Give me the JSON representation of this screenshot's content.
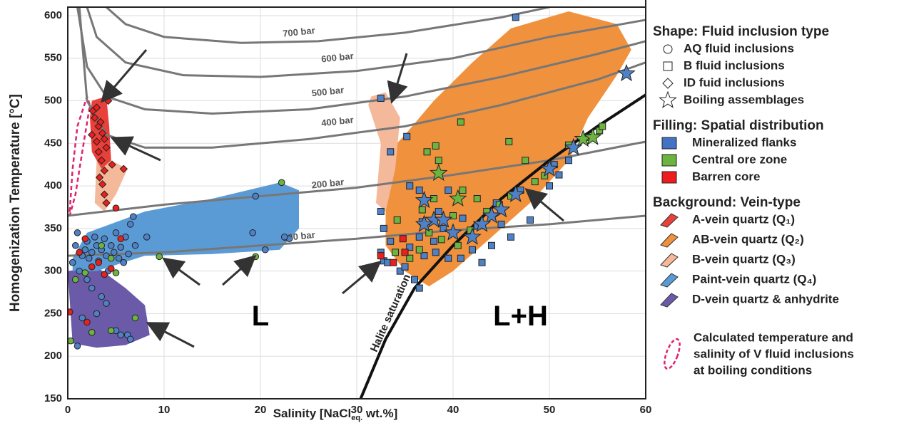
{
  "chart_data": {
    "type": "scatter",
    "x_label": "Salinity [NaCl",
    "x_label_sub": "eq.",
    "x_label_end": " wt.%]",
    "y_label": "Homogenization Temperature [°C]",
    "xlim": [
      0,
      60
    ],
    "ylim": [
      150,
      610
    ],
    "xticks": [
      0,
      10,
      20,
      30,
      40,
      50,
      60
    ],
    "yticks": [
      150,
      200,
      250,
      300,
      350,
      400,
      450,
      500,
      550,
      600
    ],
    "grid": true,
    "regions": [
      {
        "color": "#6a5aa8",
        "x": [
          0,
          3,
          6,
          8,
          8.5,
          6,
          3,
          0.5
        ],
        "y": [
          300,
          305,
          280,
          260,
          225,
          213,
          210,
          215
        ]
      },
      {
        "color": "#5b9bd5",
        "x": [
          0.5,
          2,
          8,
          15,
          22,
          24,
          24,
          22,
          15,
          8,
          3,
          0.5
        ],
        "y": [
          315,
          345,
          370,
          385,
          404,
          395,
          350,
          325,
          320,
          318,
          300,
          300
        ]
      },
      {
        "color": "#f0913e",
        "x": [
          33,
          32.5,
          35,
          38,
          42,
          46,
          52,
          57,
          58.5,
          57,
          54,
          52,
          48,
          44,
          40,
          37.5,
          35,
          33
        ],
        "y": [
          370,
          430,
          460,
          500,
          545,
          585,
          605,
          590,
          560,
          530,
          480,
          430,
          380,
          340,
          300,
          282,
          300,
          330
        ]
      },
      {
        "color": "#f4b99a",
        "x": [
          2.8,
          4,
          4.5,
          6.2,
          5,
          3.8,
          2.8,
          3
        ],
        "y": [
          470,
          470,
          430,
          420,
          390,
          370,
          380,
          430
        ]
      },
      {
        "color": "#f4b99a",
        "x": [
          31.5,
          33,
          34.5,
          34,
          33,
          32,
          32.5,
          31.2
        ],
        "y": [
          505,
          510,
          480,
          420,
          370,
          380,
          450,
          495
        ]
      },
      {
        "color": "#e8403a",
        "x": [
          2.5,
          4,
          4.3,
          4.5,
          3.5,
          2.5,
          2.3
        ],
        "y": [
          500,
          505,
          470,
          430,
          420,
          440,
          480
        ]
      }
    ],
    "boiling_region": {
      "color": "#e0226e",
      "x": [
        0.2,
        0.5,
        1,
        2,
        2.3,
        1.5,
        0.8,
        0.2
      ],
      "y": [
        370,
        420,
        470,
        505,
        495,
        440,
        390,
        365
      ]
    },
    "curves": [
      {
        "label": "100 bar",
        "label_x": 24,
        "label_y": 340,
        "x": [
          0,
          10,
          20,
          30,
          40,
          50,
          60
        ],
        "y": [
          318,
          322,
          330,
          338,
          348,
          355,
          365
        ]
      },
      {
        "label": "200 bar",
        "label_x": 27,
        "label_y": 402,
        "x": [
          0,
          10,
          20,
          30,
          40,
          50,
          60
        ],
        "y": [
          365,
          378,
          388,
          398,
          413,
          430,
          452
        ]
      },
      {
        "label": "400 bar",
        "label_x": 28,
        "label_y": 475,
        "x": [
          1.2,
          2,
          4,
          8,
          15,
          25,
          35,
          45,
          55,
          60
        ],
        "y": [
          610,
          500,
          460,
          445,
          445,
          455,
          470,
          495,
          525,
          545
        ]
      },
      {
        "label": "500 bar",
        "label_x": 27,
        "label_y": 510,
        "x": [
          1,
          2,
          4,
          8,
          15,
          25,
          35,
          45,
          55,
          60
        ],
        "y": [
          610,
          540,
          505,
          490,
          485,
          490,
          505,
          528,
          555,
          570
        ]
      },
      {
        "label": "600 bar",
        "label_x": 28,
        "label_y": 550,
        "x": [
          2,
          3,
          6,
          12,
          20,
          30,
          40,
          50,
          60
        ],
        "y": [
          610,
          575,
          545,
          530,
          528,
          535,
          550,
          575,
          595
        ]
      },
      {
        "label": "700 bar",
        "label_x": 24,
        "label_y": 580,
        "x": [
          4,
          6,
          10,
          18,
          26,
          35,
          45,
          50
        ],
        "y": [
          610,
          590,
          575,
          568,
          570,
          580,
          598,
          610
        ]
      }
    ],
    "halite": {
      "label": "Halite saturation",
      "x": [
        30.4,
        33,
        36,
        40,
        45,
        50,
        55,
        60
      ],
      "y": [
        150,
        220,
        280,
        330,
        385,
        430,
        470,
        507
      ]
    },
    "annotations": [
      {
        "text": "L",
        "x": 20,
        "y": 245
      },
      {
        "text": "L+H",
        "x": 47,
        "y": 245
      }
    ],
    "series": [
      {
        "marker": "circle",
        "color": "#4f81c7",
        "x": [
          0.5,
          0.8,
          1,
          1.2,
          1.5,
          1.8,
          2,
          2.2,
          2.5,
          2.8,
          3,
          3.2,
          3.5,
          3.8,
          4,
          4.2,
          4.5,
          4.8,
          5,
          5.3,
          5.5,
          5.8,
          6,
          6.3,
          6.5,
          6.8,
          7,
          8.2,
          19.5,
          19.2,
          20.5,
          23,
          22.5,
          1,
          1.5,
          2,
          3,
          4,
          5,
          5.5,
          6.2,
          6.5,
          3.5,
          2.5
        ],
        "y": [
          310,
          330,
          345,
          300,
          318,
          325,
          335,
          315,
          322,
          340,
          330,
          312,
          325,
          338,
          318,
          300,
          330,
          322,
          345,
          315,
          328,
          310,
          340,
          320,
          355,
          364,
          330,
          340,
          388,
          345,
          325,
          338,
          340,
          212,
          245,
          290,
          250,
          262,
          230,
          225,
          225,
          220,
          270,
          280
        ]
      },
      {
        "marker": "circle",
        "color": "#6db33f",
        "x": [
          0.3,
          0.8,
          1.8,
          3.5,
          4.5,
          5,
          9.5,
          19.5,
          22.2,
          4.5,
          7,
          2.5
        ],
        "y": [
          218,
          290,
          298,
          330,
          315,
          298,
          317,
          317,
          404,
          230,
          245,
          228
        ]
      },
      {
        "marker": "circle",
        "color": "#e8201e",
        "x": [
          0.2,
          1.8,
          2.5,
          3.2,
          3.8,
          4.5,
          5.5,
          2,
          5,
          1.2
        ],
        "y": [
          252,
          338,
          305,
          310,
          296,
          303,
          338,
          240,
          374,
          322
        ]
      },
      {
        "marker": "diamond",
        "color": "#e8201e",
        "x": [
          2.6,
          2.8,
          3,
          3.2,
          3.4,
          3.6,
          3.8,
          4,
          3.2,
          3.5,
          3.8,
          4.2,
          2.5,
          3,
          5.8,
          4.6,
          3.6,
          3.8,
          4,
          3.3
        ],
        "y": [
          488,
          480,
          492,
          470,
          475,
          462,
          455,
          445,
          440,
          430,
          418,
          500,
          460,
          452,
          420,
          425,
          402,
          390,
          380,
          410
        ]
      },
      {
        "marker": "square",
        "color": "#4f81c7",
        "x": [
          46.5,
          32.5,
          35.2,
          33.5,
          35.5,
          36.5,
          32.5,
          32.8,
          33.5,
          32.5,
          32.8,
          33.2,
          34.5,
          36,
          36.5,
          35,
          37,
          38.2,
          39.5,
          40.8,
          42,
          44,
          46,
          48,
          50,
          51,
          52,
          39,
          41,
          36.5,
          38,
          35.5,
          43,
          42.5,
          45,
          47,
          50.5,
          39.5,
          36.8,
          44.5,
          38.5
        ],
        "y": [
          598,
          503,
          458,
          440,
          400,
          395,
          370,
          350,
          335,
          322,
          312,
          310,
          300,
          290,
          280,
          305,
          318,
          322,
          315,
          315,
          325,
          330,
          340,
          360,
          400,
          413,
          430,
          350,
          362,
          340,
          335,
          328,
          310,
          353,
          355,
          395,
          425,
          395,
          358,
          380,
          370
        ]
      },
      {
        "marker": "square",
        "color": "#6db33f",
        "x": [
          38.2,
          37.3,
          38.5,
          40.8,
          45.8,
          47.5,
          38,
          41,
          42.5,
          43.5,
          44.8,
          40,
          37.5,
          36.5,
          35.5,
          36.8,
          41.8,
          46,
          49.5,
          52,
          54,
          55.2,
          55.5,
          48.5,
          34,
          34.2,
          38.8,
          40.5
        ],
        "y": [
          447,
          440,
          430,
          475,
          452,
          430,
          385,
          395,
          385,
          370,
          378,
          365,
          345,
          325,
          315,
          372,
          348,
          388,
          412,
          448,
          457,
          465,
          470,
          405,
          322,
          360,
          337,
          330
        ]
      },
      {
        "marker": "square",
        "color": "#e8201e",
        "x": [
          32.5,
          33.8,
          35,
          34.8
        ],
        "y": [
          318,
          310,
          322,
          338
        ]
      },
      {
        "marker": "star",
        "color": "#4f81c7",
        "x": [
          58,
          52.5,
          50,
          46.5,
          45,
          44,
          42,
          43,
          40,
          38,
          37,
          37,
          39
        ],
        "y": [
          532,
          445,
          420,
          390,
          372,
          365,
          340,
          355,
          345,
          360,
          355,
          383,
          360
        ]
      },
      {
        "marker": "star",
        "color": "#6db33f",
        "x": [
          38.5,
          40.5,
          53.5,
          54.5
        ],
        "y": [
          415,
          385,
          455,
          457
        ]
      }
    ],
    "legend": [
      {
        "title": "Shape: Fluid inclusion type",
        "items": [
          {
            "label": "AQ fluid inclusions",
            "marker": "circle"
          },
          {
            "label": "B fluid inclusions",
            "marker": "square"
          },
          {
            "label": "ID fuid inclusions",
            "marker": "diamond"
          },
          {
            "label": "Boiling assemblages",
            "marker": "star"
          }
        ]
      },
      {
        "title": "Filling: Spatial distribution",
        "items": [
          {
            "label": "Mineralized flanks",
            "color": "#4472c4"
          },
          {
            "label": "Central ore zone",
            "color": "#6db33f"
          },
          {
            "label": "Barren core",
            "color": "#ee1c1c"
          }
        ]
      },
      {
        "title": "Background: Vein-type",
        "items": [
          {
            "label": "A-vein quartz (Q₁)",
            "color": "#e8403a"
          },
          {
            "label": "AB-vein quartz (Q₂)",
            "color": "#f0913e"
          },
          {
            "label": "B-vein quartz (Q₃)",
            "color": "#f4b99a"
          },
          {
            "label": "Paint-vein quartz (Q₄)",
            "color": "#5b9bd5"
          },
          {
            "label": "D-vein quartz & anhydrite",
            "color": "#6a5aa8"
          }
        ]
      }
    ],
    "boiling_note": [
      "Calculated temperature and",
      "salinity of V fluid inclusions",
      "at boiling conditions"
    ]
  }
}
